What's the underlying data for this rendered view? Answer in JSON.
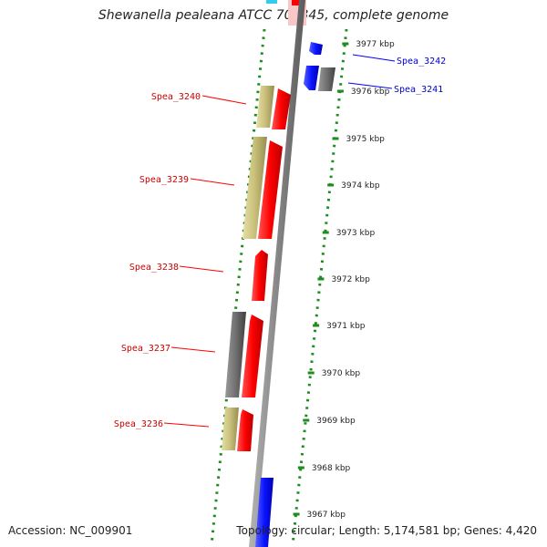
{
  "title": "Shewanella pealeana ATCC 700345, complete genome",
  "footer": {
    "accession": "Accession: NC_009901",
    "topology": "Topology: circular; Length: 5,174,581 bp; Genes: 4,420"
  },
  "colors": {
    "backbone": "#808080",
    "forward_cds": "#ff0000",
    "reverse_cds": "#0000ff",
    "other_feature": "#c8bf7a",
    "grey_feature": "#6e6e6e",
    "dotted_track": "#1e8c1e",
    "forward_label": "#cc0000",
    "reverse_label": "#0000cc"
  },
  "scale_ticks": [
    "3977 kbp",
    "3976 kbp",
    "3975 kbp",
    "3974 kbp",
    "3973 kbp",
    "3972 kbp",
    "3971 kbp",
    "3970 kbp",
    "3969 kbp",
    "3968 kbp",
    "3967 kbp"
  ],
  "gene_labels": {
    "spea_3242": "Spea_3242",
    "spea_3241": "Spea_3241",
    "spea_3240": "Spea_3240",
    "spea_3239": "Spea_3239",
    "spea_3238": "Spea_3238",
    "spea_3237": "Spea_3237",
    "spea_3236": "Spea_3236"
  }
}
